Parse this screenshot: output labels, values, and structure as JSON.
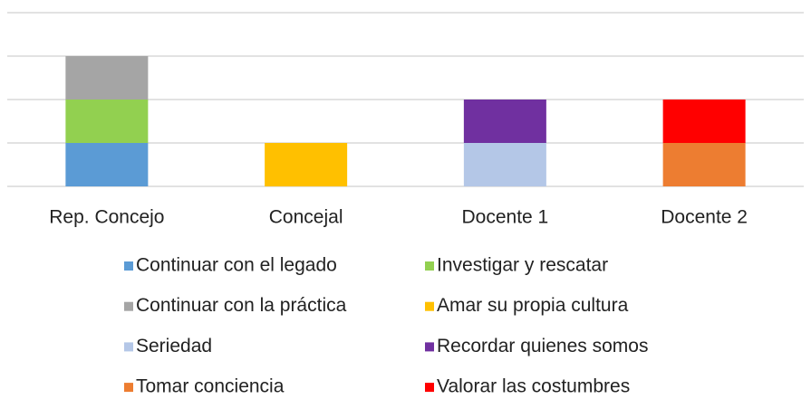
{
  "chart_data": {
    "type": "stacked_bar",
    "categories": [
      "Rep. Concejo",
      "Concejal",
      "Docente 1",
      "Docente 2"
    ],
    "series": [
      {
        "name": "Continuar con el legado",
        "color": "#5b9bd5",
        "values": [
          1,
          0,
          0,
          0
        ]
      },
      {
        "name": "Investigar y rescatar",
        "color": "#92d050",
        "values": [
          1,
          0,
          0,
          0
        ]
      },
      {
        "name": "Continuar con la práctica",
        "color": "#a5a5a5",
        "values": [
          1,
          0,
          0,
          0
        ]
      },
      {
        "name": "Amar su propia cultura",
        "color": "#ffc000",
        "values": [
          0,
          1,
          0,
          0
        ]
      },
      {
        "name": "Seriedad",
        "color": "#b4c7e7",
        "values": [
          0,
          0,
          1,
          0
        ]
      },
      {
        "name": "Recordar quienes somos",
        "color": "#7030a0",
        "values": [
          0,
          0,
          1,
          0
        ]
      },
      {
        "name": "Tomar conciencia",
        "color": "#ed7d31",
        "values": [
          0,
          0,
          0,
          1
        ]
      },
      {
        "name": "Valorar las costumbres",
        "color": "#ff0000",
        "values": [
          0,
          0,
          0,
          1
        ]
      }
    ],
    "ylim": [
      0,
      4
    ],
    "yticks": [
      0,
      1,
      2,
      3,
      4
    ],
    "grid": true,
    "legend": "bottom"
  }
}
